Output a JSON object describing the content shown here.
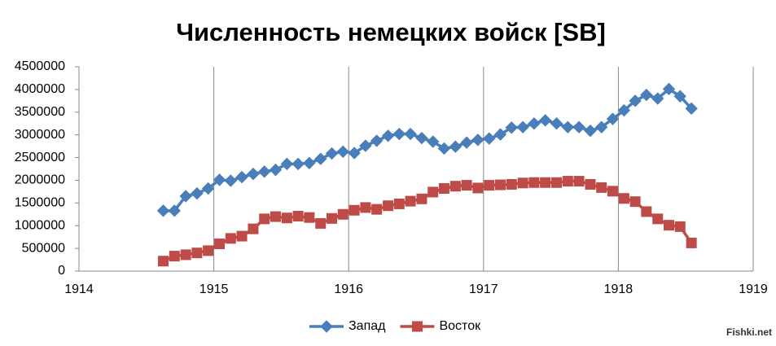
{
  "chart_data": {
    "type": "line",
    "title": "Численность немецких войск [SB]",
    "watermark": "Fishki.net",
    "x": [
      1914.625,
      1914.708,
      1914.792,
      1914.875,
      1914.958,
      1915.042,
      1915.125,
      1915.208,
      1915.292,
      1915.375,
      1915.458,
      1915.542,
      1915.625,
      1915.708,
      1915.792,
      1915.875,
      1915.958,
      1916.042,
      1916.125,
      1916.208,
      1916.292,
      1916.375,
      1916.458,
      1916.542,
      1916.625,
      1916.708,
      1916.792,
      1916.875,
      1916.958,
      1917.042,
      1917.125,
      1917.208,
      1917.292,
      1917.375,
      1917.458,
      1917.542,
      1917.625,
      1917.708,
      1917.792,
      1917.875,
      1917.958,
      1918.042,
      1918.125,
      1918.208,
      1918.292,
      1918.375,
      1918.458,
      1918.542
    ],
    "series": [
      {
        "name": "Запад",
        "color": "#4a7ebb",
        "marker": "diamond",
        "values": [
          1330000,
          1330000,
          1650000,
          1710000,
          1820000,
          2010000,
          1990000,
          2070000,
          2140000,
          2190000,
          2230000,
          2360000,
          2360000,
          2380000,
          2470000,
          2590000,
          2630000,
          2600000,
          2760000,
          2870000,
          2980000,
          3020000,
          3020000,
          2930000,
          2850000,
          2700000,
          2740000,
          2830000,
          2890000,
          2920000,
          3010000,
          3160000,
          3170000,
          3250000,
          3320000,
          3250000,
          3170000,
          3170000,
          3090000,
          3170000,
          3350000,
          3540000,
          3750000,
          3880000,
          3800000,
          4010000,
          3850000,
          3580000
        ]
      },
      {
        "name": "Восток",
        "color": "#be4b48",
        "marker": "square",
        "values": [
          220000,
          330000,
          360000,
          400000,
          450000,
          600000,
          720000,
          770000,
          930000,
          1150000,
          1200000,
          1170000,
          1210000,
          1180000,
          1050000,
          1160000,
          1250000,
          1340000,
          1400000,
          1360000,
          1440000,
          1480000,
          1540000,
          1590000,
          1740000,
          1820000,
          1870000,
          1890000,
          1830000,
          1890000,
          1900000,
          1910000,
          1940000,
          1950000,
          1950000,
          1950000,
          1980000,
          1980000,
          1910000,
          1840000,
          1760000,
          1600000,
          1530000,
          1310000,
          1150000,
          1010000,
          980000,
          620000
        ]
      }
    ],
    "xlim": [
      1914,
      1919
    ],
    "xticks": [
      1914,
      1915,
      1916,
      1917,
      1918,
      1919
    ],
    "ylim": [
      0,
      4500000
    ],
    "yticks": [
      0,
      500000,
      1000000,
      1500000,
      2000000,
      2500000,
      3000000,
      3500000,
      4000000,
      4500000
    ],
    "grid": true,
    "legend": "bottom"
  }
}
